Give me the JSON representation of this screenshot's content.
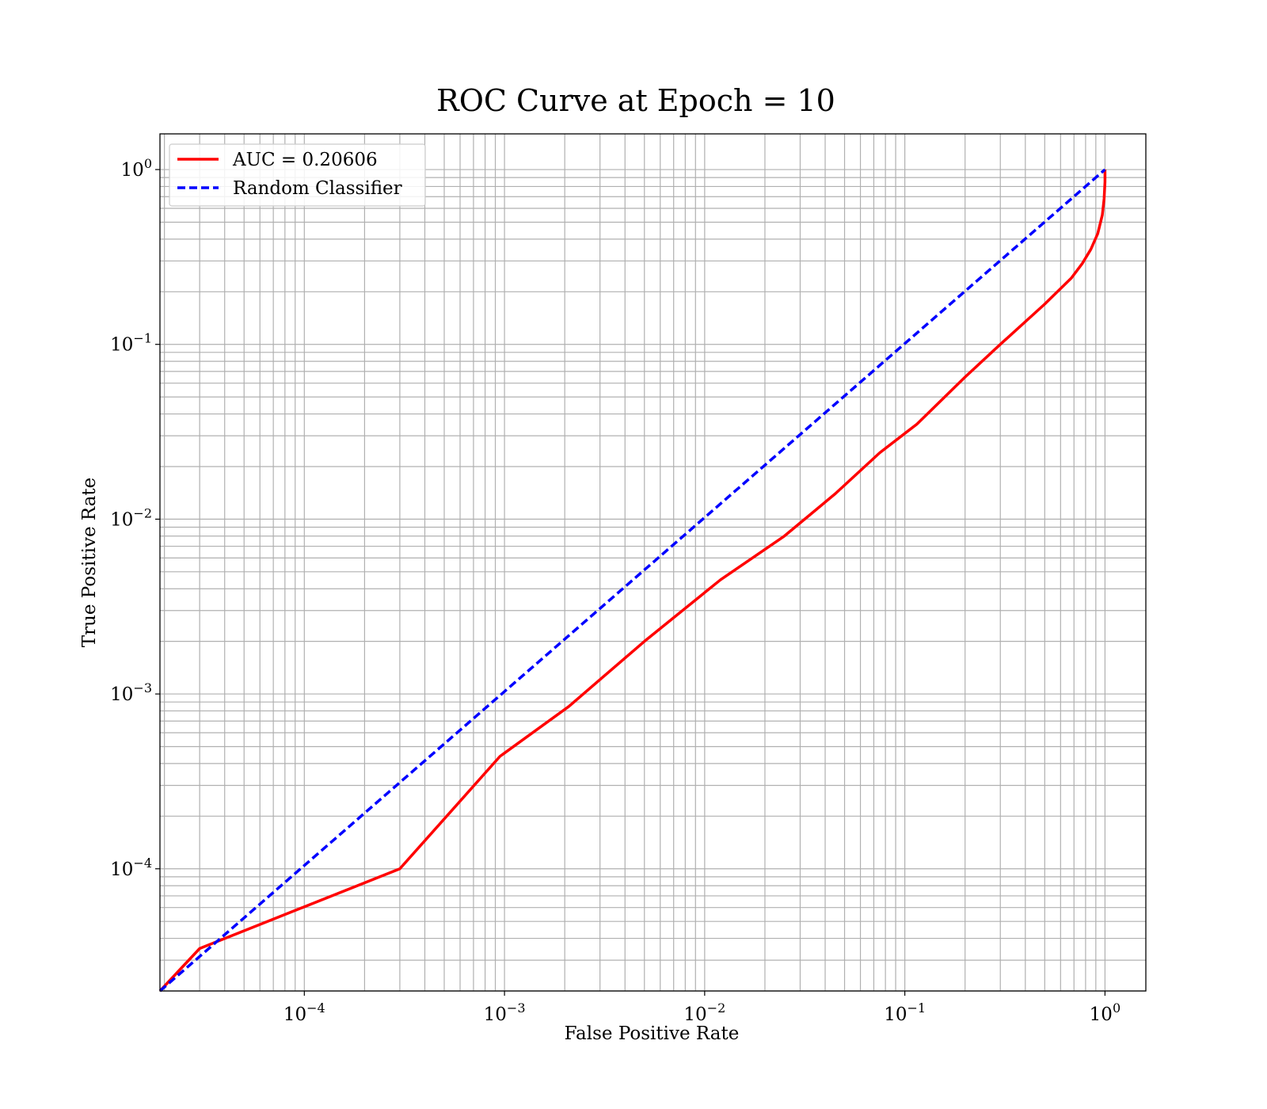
{
  "chart_data": {
    "type": "line",
    "title": "ROC Curve at Epoch = 10",
    "xlabel": "False Positive Rate",
    "ylabel": "True Positive Rate",
    "xscale": "log",
    "yscale": "log",
    "xlim": [
      1.9e-05,
      1.6
    ],
    "ylim": [
      2e-05,
      1.6
    ],
    "grid": "major and minor",
    "legend_position": "top-left",
    "xticks": [
      {
        "base": "10",
        "exp": "−4",
        "value": 0.0001
      },
      {
        "base": "10",
        "exp": "−3",
        "value": 0.001
      },
      {
        "base": "10",
        "exp": "−2",
        "value": 0.01
      },
      {
        "base": "10",
        "exp": "−1",
        "value": 0.1
      },
      {
        "base": "10",
        "exp": "0",
        "value": 1
      }
    ],
    "yticks": [
      {
        "base": "10",
        "exp": "−4",
        "value": 0.0001
      },
      {
        "base": "10",
        "exp": "−3",
        "value": 0.001
      },
      {
        "base": "10",
        "exp": "−2",
        "value": 0.01
      },
      {
        "base": "10",
        "exp": "−1",
        "value": 0.1
      },
      {
        "base": "10",
        "exp": "0",
        "value": 1
      }
    ],
    "series": [
      {
        "name": "AUC = 0.20606",
        "color": "#ff0000",
        "style": "solid",
        "x": [
          1.9e-05,
          3e-05,
          0.0003,
          0.00095,
          0.0021,
          0.005,
          0.012,
          0.025,
          0.045,
          0.075,
          0.115,
          0.2,
          0.3,
          0.5,
          0.68,
          0.77,
          0.85,
          0.92,
          0.97,
          0.99,
          1.0,
          1.0
        ],
        "y": [
          2e-05,
          3.5e-05,
          0.0001,
          0.00044,
          0.00085,
          0.002,
          0.0045,
          0.008,
          0.014,
          0.024,
          0.035,
          0.065,
          0.1,
          0.17,
          0.24,
          0.29,
          0.35,
          0.43,
          0.55,
          0.68,
          0.85,
          1.0
        ]
      },
      {
        "name": "Random Classifier",
        "color": "#0000ff",
        "style": "dashed",
        "x": [
          1.9e-05,
          1.0
        ],
        "y": [
          2e-05,
          1.0
        ]
      }
    ]
  }
}
